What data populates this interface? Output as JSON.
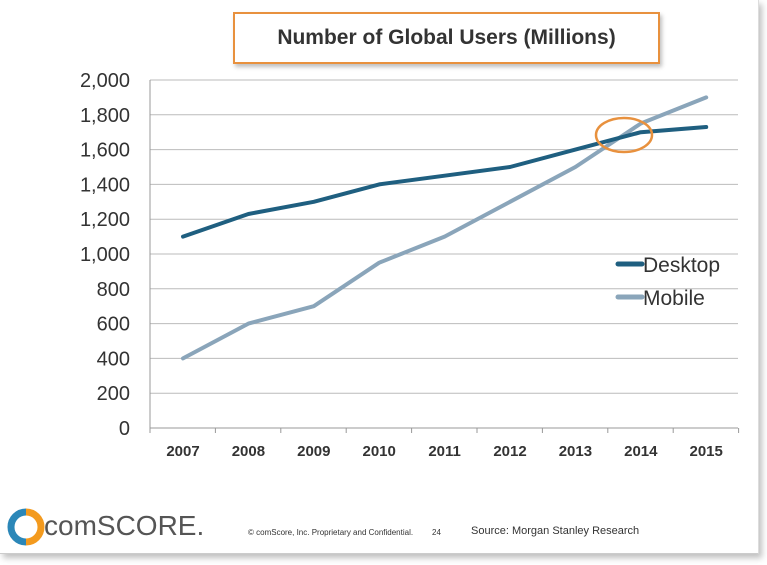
{
  "chart_data": {
    "type": "line",
    "title": "Number of Global Users (Millions)",
    "x": [
      "2007",
      "2008",
      "2009",
      "2010",
      "2011",
      "2012",
      "2013",
      "2014",
      "2015"
    ],
    "ylim": [
      0,
      2000
    ],
    "yticks": [
      "0",
      "200",
      "400",
      "600",
      "800",
      "1,000",
      "1,200",
      "1,400",
      "1,600",
      "1,800",
      "2,000"
    ],
    "grid": true,
    "legend_placement": "right",
    "series": [
      {
        "name": "Desktop",
        "color": "#1f5f80",
        "values": [
          1100,
          1230,
          1300,
          1400,
          1450,
          1500,
          1600,
          1700,
          1730
        ]
      },
      {
        "name": "Mobile",
        "color": "#8aa5ba",
        "values": [
          400,
          600,
          700,
          950,
          1100,
          1300,
          1500,
          1750,
          1900
        ]
      }
    ],
    "annotation": {
      "type": "circle",
      "color": "#e8913e",
      "near": "2014 crossover"
    }
  },
  "footer": {
    "logo": "comSCORE.",
    "copyright": "© comScore, Inc.  Proprietary and Confidential.",
    "page": "24",
    "source": "Source: Morgan Stanley Research"
  }
}
